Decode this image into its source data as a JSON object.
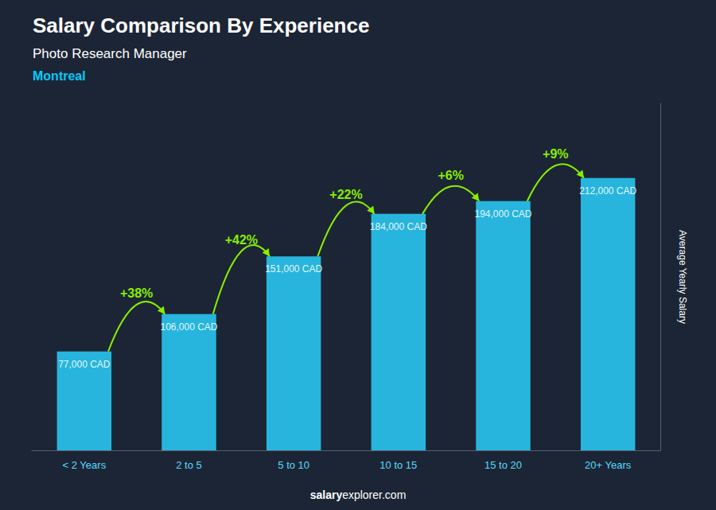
{
  "chart_data": {
    "type": "bar",
    "title": "Salary Comparison By Experience",
    "subtitle": "Photo Research Manager",
    "city": "Montreal",
    "ylabel": "Average Yearly Salary",
    "source": [
      "salary",
      "explorer.com"
    ],
    "categories": [
      "< 2 Years",
      "2 to 5",
      "5 to 10",
      "10 to 15",
      "15 to 20",
      "20+ Years"
    ],
    "values": [
      77000,
      106000,
      151000,
      184000,
      194000,
      212000
    ],
    "value_labels": [
      "77,000 CAD",
      "106,000 CAD",
      "151,000 CAD",
      "184,000 CAD",
      "194,000 CAD",
      "212,000 CAD"
    ],
    "data_labels": true,
    "color": "#29c5ef",
    "annotations": {
      "labels": [
        "+38%",
        "+42%",
        "+22%",
        "+6%",
        "+9%"
      ],
      "color": "#88ee00"
    },
    "ylim": [
      0,
      270000
    ],
    "grid": false,
    "tick_labels": "x"
  }
}
